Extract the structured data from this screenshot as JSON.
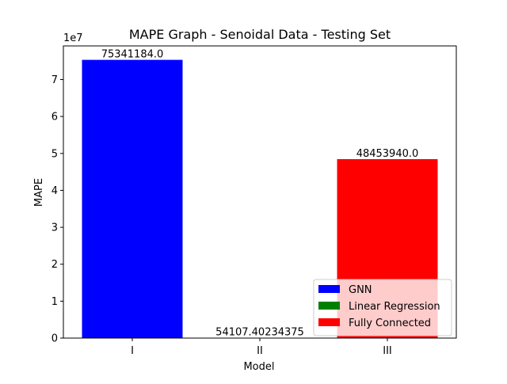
{
  "chart_data": {
    "type": "bar",
    "title": "MAPE Graph - Senoidal Data - Testing Set",
    "xlabel": "Model",
    "ylabel": "MAPE",
    "y_scale_label": "1e7",
    "categories": [
      "I",
      "II",
      "III"
    ],
    "series": [
      {
        "name": "GNN",
        "color": "#0000ff",
        "category": "I",
        "value": 75341184.0,
        "data_label": "75341184.0"
      },
      {
        "name": "Linear Regression",
        "color": "#008000",
        "category": "II",
        "value": 54107.40234375,
        "data_label": "54107.40234375"
      },
      {
        "name": "Fully Connected",
        "color": "#ff0000",
        "category": "III",
        "value": 48453940.0,
        "data_label": "48453940.0"
      }
    ],
    "y_ticks": [
      0,
      1,
      2,
      3,
      4,
      5,
      6,
      7
    ],
    "y_tick_multiplier": 10000000,
    "ylim": [
      0,
      79108243.2
    ],
    "grid": false,
    "legend_position": "lower-right"
  }
}
